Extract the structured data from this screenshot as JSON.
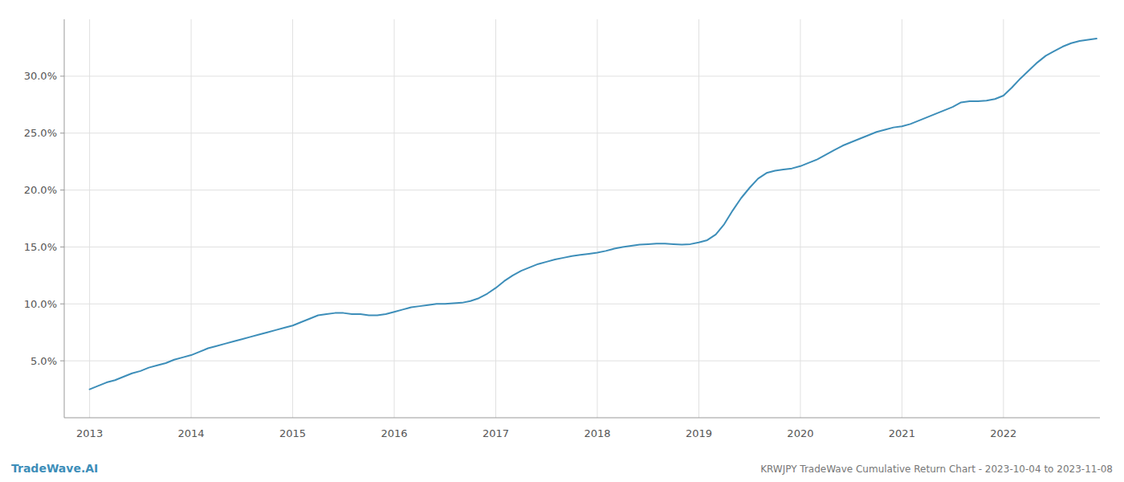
{
  "chart_data": {
    "type": "line",
    "title": "KRWJPY TradeWave Cumulative Return Chart - 2023-10-04 to 2023-11-08",
    "annotations": [
      "TradeWave.AI"
    ],
    "color": "#3d8eb9",
    "grid": true,
    "x": [
      2013.0,
      2013.083,
      2013.167,
      2013.25,
      2013.333,
      2013.417,
      2013.5,
      2013.583,
      2013.667,
      2013.75,
      2013.833,
      2013.917,
      2014.0,
      2014.083,
      2014.167,
      2014.25,
      2014.333,
      2014.417,
      2014.5,
      2014.583,
      2014.667,
      2014.75,
      2014.833,
      2014.917,
      2015.0,
      2015.083,
      2015.167,
      2015.25,
      2015.333,
      2015.417,
      2015.5,
      2015.583,
      2015.667,
      2015.75,
      2015.833,
      2015.917,
      2016.0,
      2016.083,
      2016.167,
      2016.25,
      2016.333,
      2016.417,
      2016.5,
      2016.583,
      2016.667,
      2016.75,
      2016.833,
      2016.917,
      2017.0,
      2017.083,
      2017.167,
      2017.25,
      2017.333,
      2017.417,
      2017.5,
      2017.583,
      2017.667,
      2017.75,
      2017.833,
      2017.917,
      2018.0,
      2018.083,
      2018.167,
      2018.25,
      2018.333,
      2018.417,
      2018.5,
      2018.583,
      2018.667,
      2018.75,
      2018.833,
      2018.917,
      2019.0,
      2019.083,
      2019.167,
      2019.25,
      2019.333,
      2019.417,
      2019.5,
      2019.583,
      2019.667,
      2019.75,
      2019.833,
      2019.917,
      2020.0,
      2020.083,
      2020.167,
      2020.25,
      2020.333,
      2020.417,
      2020.5,
      2020.583,
      2020.667,
      2020.75,
      2020.833,
      2020.917,
      2021.0,
      2021.083,
      2021.167,
      2021.25,
      2021.333,
      2021.417,
      2021.5,
      2021.583,
      2021.667,
      2021.75,
      2021.833,
      2021.917,
      2022.0,
      2022.083,
      2022.167,
      2022.25,
      2022.333,
      2022.417,
      2022.5,
      2022.583,
      2022.667,
      2022.75,
      2022.833,
      2022.917
    ],
    "values": [
      2.5,
      2.8,
      3.1,
      3.3,
      3.6,
      3.9,
      4.1,
      4.4,
      4.6,
      4.8,
      5.1,
      5.3,
      5.5,
      5.8,
      6.1,
      6.3,
      6.5,
      6.7,
      6.9,
      7.1,
      7.3,
      7.5,
      7.7,
      7.9,
      8.1,
      8.4,
      8.7,
      9.0,
      9.1,
      9.2,
      9.2,
      9.1,
      9.1,
      9.0,
      9.0,
      9.1,
      9.3,
      9.5,
      9.7,
      9.8,
      9.9,
      10.0,
      10.0,
      10.05,
      10.1,
      10.25,
      10.5,
      10.9,
      11.4,
      12.0,
      12.5,
      12.9,
      13.2,
      13.5,
      13.7,
      13.9,
      14.05,
      14.2,
      14.3,
      14.4,
      14.5,
      14.65,
      14.85,
      15.0,
      15.1,
      15.2,
      15.25,
      15.3,
      15.3,
      15.25,
      15.2,
      15.25,
      15.4,
      15.6,
      16.1,
      17.0,
      18.2,
      19.3,
      20.2,
      21.0,
      21.5,
      21.7,
      21.8,
      21.9,
      22.1,
      22.4,
      22.7,
      23.1,
      23.5,
      23.9,
      24.2,
      24.5,
      24.8,
      25.1,
      25.3,
      25.5,
      25.6,
      25.8,
      26.1,
      26.4,
      26.7,
      27.0,
      27.3,
      27.7,
      27.8,
      27.8,
      27.85,
      28.0,
      28.3,
      29.0,
      29.8,
      30.5,
      31.2,
      31.8,
      32.2,
      32.6,
      32.9,
      33.1,
      33.2,
      33.3
    ],
    "xlim": [
      2012.75,
      2022.95
    ],
    "xticks": [
      2013,
      2014,
      2015,
      2016,
      2017,
      2018,
      2019,
      2020,
      2021,
      2022
    ],
    "ylim": [
      0,
      35
    ],
    "yticks": [
      {
        "value": 5.0,
        "label": "5.0%"
      },
      {
        "value": 10.0,
        "label": "10.0%"
      },
      {
        "value": 15.0,
        "label": "15.0%"
      },
      {
        "value": 20.0,
        "label": "20.0%"
      },
      {
        "value": 25.0,
        "label": "25.0%"
      },
      {
        "value": 30.0,
        "label": "30.0%"
      }
    ]
  }
}
